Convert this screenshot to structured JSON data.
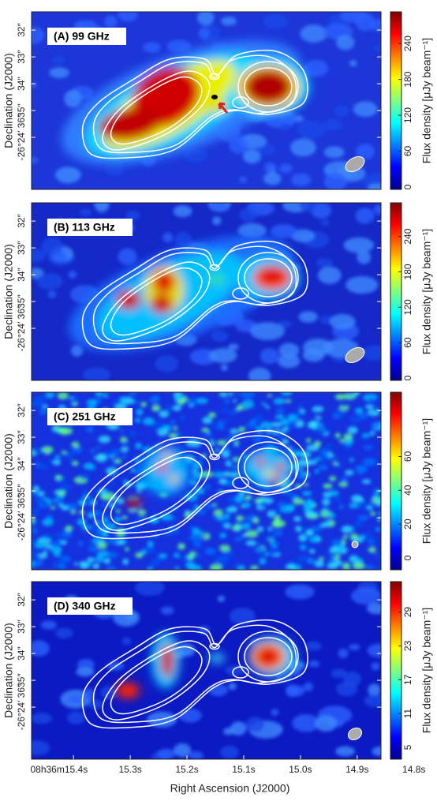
{
  "chart_data": [
    {
      "type": "image",
      "title": "(A) 99 GHz",
      "ylabel": "Declination (J2000)",
      "colormap": "jet",
      "ylim": [
        31.32,
        37.94
      ],
      "yticks": [
        {
          "value": 32,
          "label": "32″"
        },
        {
          "value": 33,
          "label": "33″"
        },
        {
          "value": 34,
          "label": "34″"
        },
        {
          "value": 35,
          "label": "35″"
        },
        {
          "value": 36,
          "label": "-26°24′ 36″"
        }
      ],
      "colorbar": {
        "label": "Flux density [μJy beam⁻¹]",
        "lim": [
          -4,
          293
        ],
        "ticks": [
          0,
          60,
          120,
          180,
          240
        ]
      }
    },
    {
      "type": "image",
      "title": "(B) 113 GHz",
      "ylabel": "Declination (J2000)",
      "colormap": "jet",
      "ylim": [
        31.32,
        37.94
      ],
      "yticks": [
        {
          "value": 32,
          "label": "32″"
        },
        {
          "value": 33,
          "label": "33″"
        },
        {
          "value": 34,
          "label": "34″"
        },
        {
          "value": 35,
          "label": "35″"
        },
        {
          "value": 36,
          "label": "-26°24′ 36″"
        }
      ],
      "colorbar": {
        "label": "Flux density [μJy beam⁻¹]",
        "lim": [
          -4,
          297
        ],
        "ticks": [
          0,
          60,
          120,
          180,
          240
        ]
      }
    },
    {
      "type": "image",
      "title": "(C) 251 GHz",
      "ylabel": "Declination (J2000)",
      "colormap": "jet",
      "ylim": [
        31.32,
        37.94
      ],
      "yticks": [
        {
          "value": 32,
          "label": "32″"
        },
        {
          "value": 33,
          "label": "33″"
        },
        {
          "value": 34,
          "label": "34″"
        },
        {
          "value": 35,
          "label": "35″"
        },
        {
          "value": 36,
          "label": "-26°24′ 36″"
        }
      ],
      "colorbar": {
        "label": "Flux density [μJy beam⁻¹]",
        "lim": [
          -7,
          98
        ],
        "ticks": [
          0,
          20,
          40,
          60
        ]
      }
    },
    {
      "type": "image",
      "title": "(D) 340 GHz",
      "ylabel": "Declination (J2000)",
      "colormap": "jet",
      "ylim": [
        31.32,
        37.94
      ],
      "yticks": [
        {
          "value": 32,
          "label": "32″"
        },
        {
          "value": 33,
          "label": "33″"
        },
        {
          "value": 34,
          "label": "34″"
        },
        {
          "value": 35,
          "label": "35″"
        },
        {
          "value": 36,
          "label": "-26°24′ 36″"
        }
      ],
      "colorbar": {
        "label": "Flux density [μJy beam⁻¹]",
        "lim": [
          2.9,
          34.4
        ],
        "ticks": [
          5,
          11,
          17,
          23,
          29
        ]
      },
      "xlabel": "Right Ascension (J2000)",
      "xlim": [
        15.474,
        14.858
      ],
      "xticks": [
        {
          "value": 15.4,
          "label": "08h36m15.4s"
        },
        {
          "value": 15.3,
          "label": "15.3s"
        },
        {
          "value": 15.2,
          "label": "15.2s"
        },
        {
          "value": 15.1,
          "label": "15.1s"
        },
        {
          "value": 15.0,
          "label": "15.0s"
        },
        {
          "value": 14.9,
          "label": "14.9s"
        },
        {
          "value": 14.8,
          "label": "14.8s"
        }
      ]
    }
  ]
}
